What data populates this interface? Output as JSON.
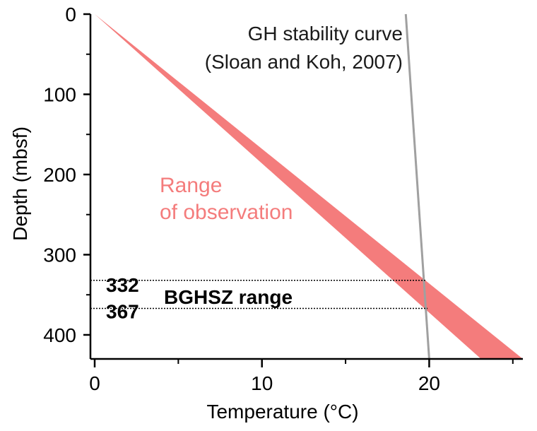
{
  "chart_data": {
    "type": "line",
    "title": "",
    "xlabel": "Temperature (°C)",
    "ylabel": "Depth (mbsf)",
    "xlim": [
      0,
      25.6
    ],
    "ylim": [
      0,
      430
    ],
    "y_inverted": true,
    "x_ticks": [
      0,
      10,
      20
    ],
    "x_tick_labels": [
      "0",
      "10",
      "20"
    ],
    "y_ticks": [
      0,
      100,
      200,
      300,
      400
    ],
    "y_tick_labels": [
      "0",
      "100",
      "200",
      "300",
      "400"
    ],
    "grid": false,
    "series": [
      {
        "name": "Range of observation",
        "kind": "band",
        "color": "#f47c7c",
        "upper_edge": {
          "x": [
            0,
            25.6
          ],
          "depth": [
            0,
            430
          ]
        },
        "lower_edge": {
          "x": [
            0,
            23.1
          ],
          "depth": [
            0,
            430
          ]
        }
      },
      {
        "name": "GH stability curve (Sloan and Koh, 2007)",
        "kind": "line",
        "color": "#a0a0a0",
        "x": [
          18.6,
          20.0
        ],
        "depth": [
          0,
          430
        ]
      }
    ],
    "reference_lines": [
      {
        "depth": 332,
        "label": "332",
        "x_range": [
          0,
          19.8
        ]
      },
      {
        "depth": 367,
        "label": "367",
        "x_range": [
          0,
          19.9
        ]
      }
    ],
    "annotations": {
      "gh_line1": "GH stability curve",
      "gh_line2": "(Sloan and Koh, 2007)",
      "range_line1": "Range",
      "range_line2": "of observation",
      "bghsz": "BGHSZ range"
    },
    "colors": {
      "band": "#f47c7c",
      "gh_curve": "#a0a0a0",
      "axis": "#000000"
    }
  }
}
